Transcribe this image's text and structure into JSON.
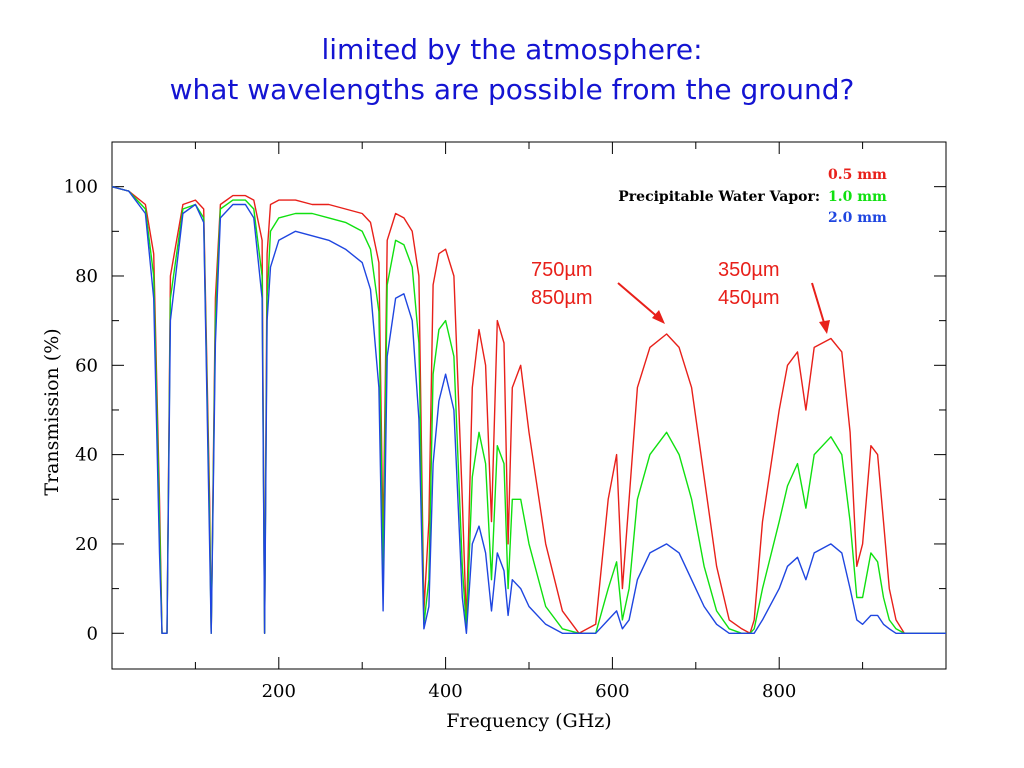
{
  "slide": {
    "title_line1": "limited by the atmosphere:",
    "title_line2": "what wavelengths are possible from the ground?"
  },
  "colors": {
    "title": "#1414d2",
    "red": "#e8201a",
    "green": "#10e010",
    "blue": "#1f46e0"
  },
  "chart_data": {
    "type": "line",
    "xlabel": "Frequency (GHz)",
    "ylabel": "Transmission (%)",
    "xlim": [
      0,
      1000
    ],
    "ylim": [
      -8,
      110
    ],
    "x_ticks": [
      200,
      400,
      600,
      800
    ],
    "y_ticks": [
      0,
      20,
      40,
      60,
      80,
      100
    ],
    "legend": {
      "position": "top-right",
      "heading": "Precipitable Water Vapor:",
      "entries": [
        "0.5 mm",
        "1.0 mm",
        "2.0 mm"
      ]
    },
    "annotations": [
      {
        "line1": "750µm",
        "line2": "850µm",
        "points_to_x": 665,
        "points_to_y": 66
      },
      {
        "line1": "350µm",
        "line2": "450µm",
        "points_to_x": 862,
        "points_to_y": 66
      }
    ],
    "series": [
      {
        "name": "0.5 mm",
        "color": "#e8201a",
        "x": [
          0,
          20,
          40,
          50,
          57,
          60,
          66,
          70,
          85,
          100,
          110,
          117,
          119,
          124,
          130,
          145,
          160,
          170,
          180,
          183,
          186,
          190,
          200,
          220,
          240,
          260,
          280,
          300,
          310,
          320,
          325,
          330,
          340,
          350,
          360,
          368,
          374,
          380,
          385,
          392,
          400,
          410,
          420,
          425,
          432,
          440,
          448,
          455,
          462,
          470,
          475,
          480,
          490,
          500,
          520,
          540,
          560,
          580,
          595,
          605,
          612,
          620,
          630,
          645,
          665,
          680,
          695,
          710,
          725,
          740,
          755,
          765,
          770,
          780,
          800,
          810,
          822,
          832,
          842,
          862,
          875,
          885,
          893,
          900,
          910,
          918,
          925,
          932,
          940,
          950,
          960,
          980,
          1000
        ],
        "values": [
          100,
          99,
          96,
          85,
          30,
          0,
          0,
          80,
          96,
          97,
          95,
          30,
          0,
          75,
          96,
          98,
          98,
          97,
          88,
          0,
          85,
          96,
          97,
          97,
          96,
          96,
          95,
          94,
          92,
          83,
          20,
          88,
          94,
          93,
          90,
          80,
          5,
          25,
          78,
          85,
          86,
          80,
          30,
          2,
          55,
          68,
          60,
          25,
          70,
          65,
          20,
          55,
          60,
          45,
          20,
          5,
          0,
          2,
          30,
          40,
          10,
          30,
          55,
          64,
          67,
          64,
          55,
          35,
          15,
          3,
          1,
          0,
          3,
          25,
          50,
          60,
          63,
          50,
          64,
          66,
          63,
          45,
          15,
          20,
          42,
          40,
          25,
          10,
          3,
          0,
          0,
          0,
          0
        ]
      },
      {
        "name": "1.0 mm",
        "color": "#10e010",
        "x": [
          0,
          20,
          40,
          50,
          57,
          60,
          66,
          70,
          85,
          100,
          110,
          117,
          119,
          124,
          130,
          145,
          160,
          170,
          180,
          183,
          186,
          190,
          200,
          220,
          240,
          260,
          280,
          300,
          310,
          320,
          325,
          330,
          340,
          350,
          360,
          368,
          374,
          380,
          385,
          392,
          400,
          410,
          420,
          425,
          432,
          440,
          448,
          455,
          462,
          470,
          475,
          480,
          490,
          500,
          520,
          540,
          560,
          580,
          595,
          605,
          612,
          620,
          630,
          645,
          665,
          680,
          695,
          710,
          725,
          740,
          755,
          765,
          770,
          780,
          800,
          810,
          822,
          832,
          842,
          862,
          875,
          885,
          893,
          900,
          910,
          918,
          925,
          932,
          940,
          950,
          960,
          980,
          1000
        ],
        "values": [
          100,
          99,
          95,
          80,
          25,
          0,
          0,
          75,
          95,
          96,
          93,
          25,
          0,
          70,
          95,
          97,
          97,
          95,
          80,
          0,
          75,
          90,
          93,
          94,
          94,
          93,
          92,
          90,
          86,
          72,
          12,
          78,
          88,
          87,
          82,
          65,
          2,
          12,
          58,
          68,
          70,
          62,
          15,
          1,
          35,
          45,
          38,
          12,
          42,
          38,
          10,
          30,
          30,
          20,
          6,
          1,
          0,
          0,
          10,
          16,
          3,
          10,
          30,
          40,
          45,
          40,
          30,
          15,
          5,
          1,
          0,
          0,
          1,
          10,
          25,
          33,
          38,
          28,
          40,
          44,
          40,
          25,
          8,
          8,
          18,
          16,
          8,
          3,
          1,
          0,
          0,
          0,
          0
        ]
      },
      {
        "name": "2.0 mm",
        "color": "#1f46e0",
        "x": [
          0,
          20,
          40,
          50,
          57,
          60,
          66,
          70,
          85,
          100,
          110,
          117,
          119,
          124,
          130,
          145,
          160,
          170,
          180,
          183,
          186,
          190,
          200,
          220,
          240,
          260,
          280,
          300,
          310,
          320,
          325,
          330,
          340,
          350,
          360,
          368,
          374,
          380,
          385,
          392,
          400,
          410,
          420,
          425,
          432,
          440,
          448,
          455,
          462,
          470,
          475,
          480,
          490,
          500,
          520,
          540,
          560,
          580,
          595,
          605,
          612,
          620,
          630,
          645,
          665,
          680,
          695,
          710,
          725,
          740,
          755,
          765,
          770,
          780,
          800,
          810,
          822,
          832,
          842,
          862,
          875,
          885,
          893,
          900,
          910,
          918,
          925,
          932,
          940,
          950,
          960,
          980,
          1000
        ],
        "values": [
          100,
          99,
          94,
          75,
          18,
          0,
          0,
          70,
          94,
          96,
          92,
          20,
          0,
          65,
          93,
          96,
          96,
          93,
          75,
          0,
          70,
          82,
          88,
          90,
          89,
          88,
          86,
          83,
          77,
          55,
          5,
          62,
          75,
          76,
          70,
          48,
          1,
          6,
          38,
          52,
          58,
          50,
          8,
          0,
          20,
          24,
          18,
          5,
          18,
          14,
          4,
          12,
          10,
          6,
          2,
          0,
          0,
          0,
          3,
          5,
          1,
          3,
          12,
          18,
          20,
          18,
          12,
          6,
          2,
          0,
          0,
          0,
          0,
          3,
          10,
          15,
          17,
          12,
          18,
          20,
          18,
          10,
          3,
          2,
          4,
          4,
          2,
          1,
          0,
          0,
          0,
          0,
          0
        ]
      }
    ]
  }
}
